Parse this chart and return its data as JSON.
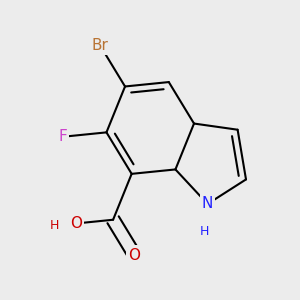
{
  "background_color": "#ececec",
  "bond_color": "#000000",
  "bond_width": 1.5,
  "atom_labels": {
    "Br": {
      "color": "#b87333",
      "fontsize": 11
    },
    "F": {
      "color": "#cc44cc",
      "fontsize": 11
    },
    "N": {
      "color": "#2222ff",
      "fontsize": 11
    },
    "H_N": {
      "color": "#2222ff",
      "fontsize": 9
    },
    "O": {
      "color": "#cc0000",
      "fontsize": 11
    },
    "H_O": {
      "color": "#cc0000",
      "fontsize": 9
    }
  },
  "figsize": [
    3.0,
    3.0
  ],
  "dpi": 100
}
